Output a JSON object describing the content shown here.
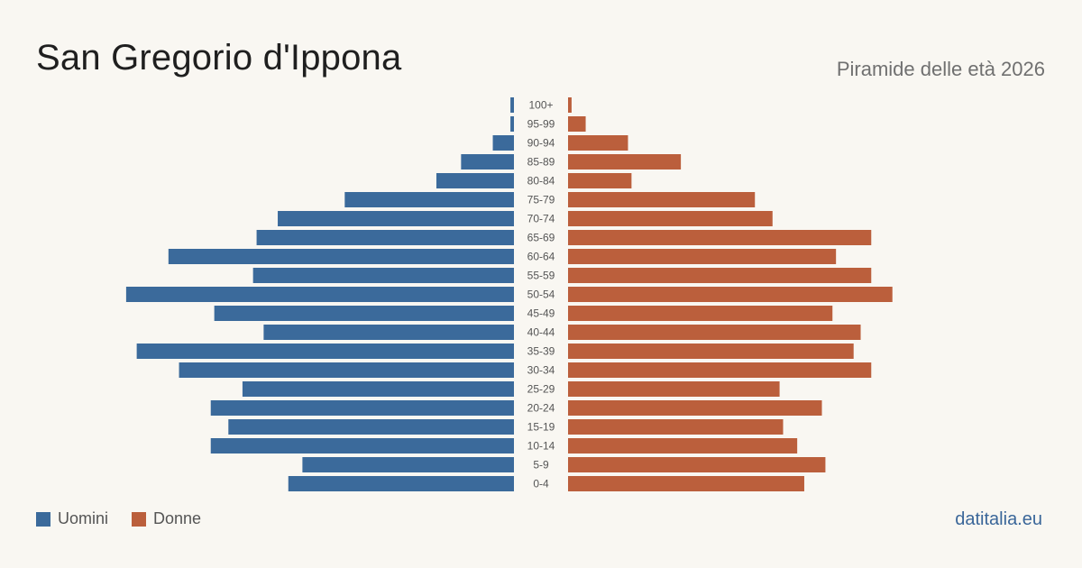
{
  "header": {
    "title": "San Gregorio d'Ippona",
    "subtitle": "Piramide delle età 2026"
  },
  "legend": {
    "men_label": "Uomini",
    "women_label": "Donne"
  },
  "brand": "datitalia.eu",
  "colors": {
    "men": "#3b6a9b",
    "women": "#bb5f3c",
    "background": "#f9f7f2",
    "label": "#555555"
  },
  "chart_data": {
    "type": "bar",
    "orientation": "horizontal-pyramid",
    "categories": [
      "100+",
      "95-99",
      "90-94",
      "85-89",
      "80-84",
      "75-79",
      "70-74",
      "65-69",
      "60-64",
      "55-59",
      "50-54",
      "45-49",
      "40-44",
      "35-39",
      "30-34",
      "25-29",
      "20-24",
      "15-19",
      "10-14",
      "5-9",
      "0-4"
    ],
    "series": [
      {
        "name": "Uomini",
        "values": [
          1,
          1,
          6,
          15,
          22,
          48,
          67,
          73,
          98,
          74,
          110,
          85,
          71,
          107,
          95,
          77,
          86,
          81,
          86,
          60,
          64
        ]
      },
      {
        "name": "Donne",
        "values": [
          1,
          5,
          17,
          32,
          18,
          53,
          58,
          86,
          76,
          86,
          92,
          75,
          83,
          81,
          86,
          60,
          72,
          61,
          65,
          73,
          67
        ]
      }
    ],
    "legend_position": "bottom-left",
    "grid": false
  }
}
